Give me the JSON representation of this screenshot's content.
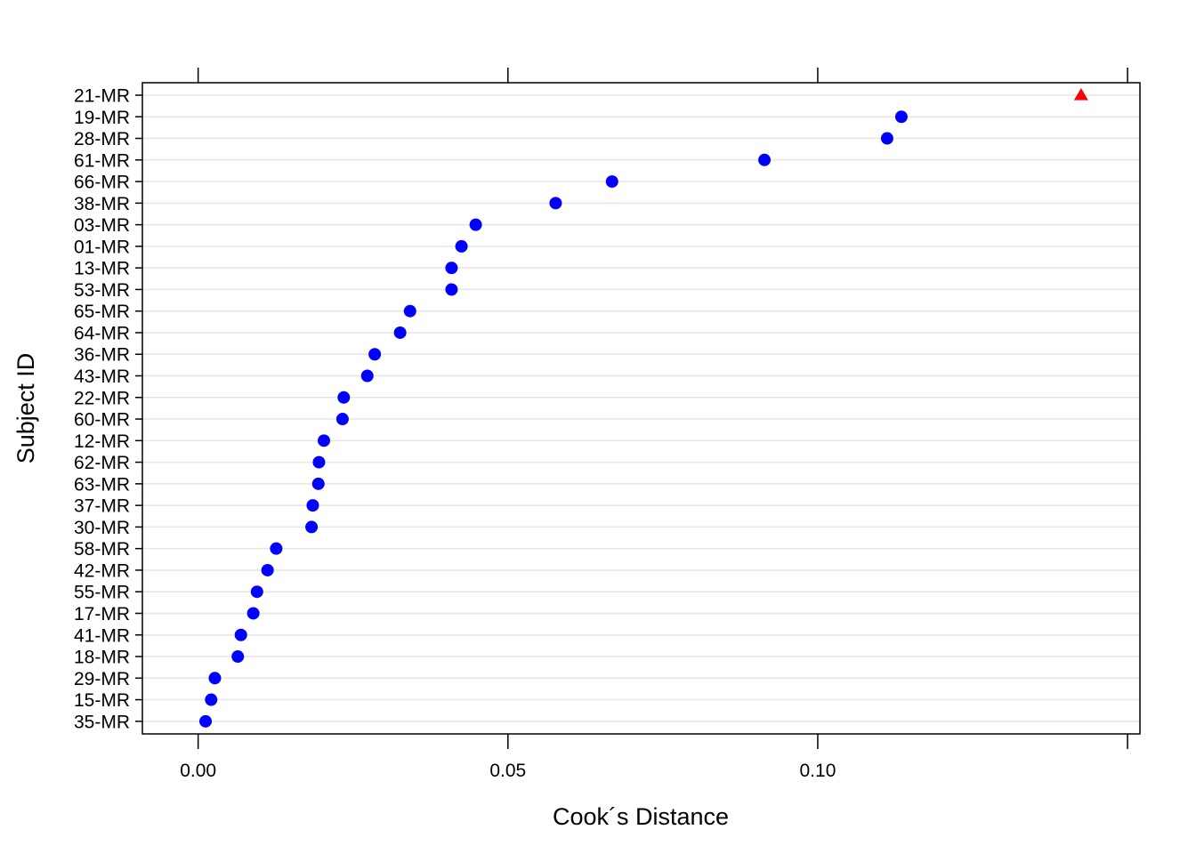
{
  "chart_data": {
    "type": "scatter",
    "style": "dotplot",
    "xlabel": "Cook´s Distance",
    "ylabel": "Subject ID",
    "xlim": [
      -0.009,
      0.152
    ],
    "x_ticks": [
      0.0,
      0.05,
      0.1,
      0.15
    ],
    "x_tick_labels": [
      "0.00",
      "0.05",
      "0.10",
      ""
    ],
    "grid": "horizontal",
    "categories": [
      "21-MR",
      "19-MR",
      "28-MR",
      "61-MR",
      "66-MR",
      "38-MR",
      "03-MR",
      "01-MR",
      "13-MR",
      "53-MR",
      "65-MR",
      "64-MR",
      "36-MR",
      "43-MR",
      "22-MR",
      "60-MR",
      "12-MR",
      "62-MR",
      "63-MR",
      "37-MR",
      "30-MR",
      "58-MR",
      "42-MR",
      "55-MR",
      "17-MR",
      "41-MR",
      "18-MR",
      "29-MR",
      "15-MR",
      "35-MR"
    ],
    "values": [
      0.1425,
      0.1135,
      0.1112,
      0.0914,
      0.0668,
      0.0577,
      0.0448,
      0.0425,
      0.0409,
      0.0409,
      0.0342,
      0.0326,
      0.0285,
      0.0273,
      0.0235,
      0.0233,
      0.0203,
      0.0195,
      0.0194,
      0.0185,
      0.0183,
      0.0126,
      0.0112,
      0.0095,
      0.0089,
      0.0069,
      0.0064,
      0.0027,
      0.0021,
      0.0012
    ],
    "markers": [
      "triangle",
      "circle",
      "circle",
      "circle",
      "circle",
      "circle",
      "circle",
      "circle",
      "circle",
      "circle",
      "circle",
      "circle",
      "circle",
      "circle",
      "circle",
      "circle",
      "circle",
      "circle",
      "circle",
      "circle",
      "circle",
      "circle",
      "circle",
      "circle",
      "circle",
      "circle",
      "circle",
      "circle",
      "circle",
      "circle"
    ],
    "colors": {
      "point": "#0000ff",
      "outlier": "#ff0000",
      "grid": "#e6e6e6",
      "axis": "#000000"
    }
  }
}
